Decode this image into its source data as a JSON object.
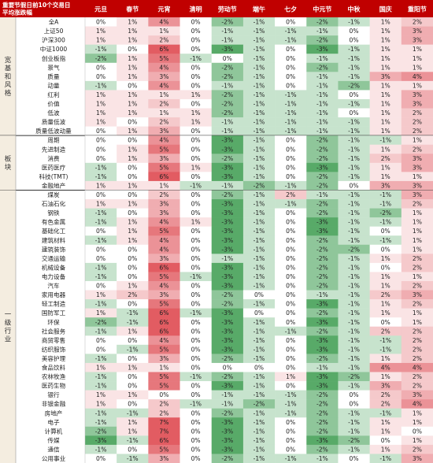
{
  "chart_data": {
    "type": "heatmap",
    "title_lines": [
      "重要节假日前10个交易日",
      "平均涨跌幅"
    ],
    "columns": [
      "元旦",
      "春节",
      "元宵",
      "清明",
      "劳动节",
      "端午",
      "七夕",
      "中元节",
      "中秋",
      "国庆",
      "重阳节"
    ],
    "groups": [
      {
        "label": "宽基和风格",
        "rows": [
          {
            "name": "全A",
            "values": [
              "0%",
              "1%",
              "4%",
              "0%",
              "-2%",
              "-1%",
              "0%",
              "-2%",
              "-1%",
              "1%",
              "2%"
            ]
          },
          {
            "name": "上证50",
            "values": [
              "1%",
              "1%",
              "1%",
              "0%",
              "-1%",
              "-1%",
              "-1%",
              "-1%",
              "0%",
              "1%",
              "3%"
            ]
          },
          {
            "name": "沪深300",
            "values": [
              "1%",
              "1%",
              "2%",
              "0%",
              "-1%",
              "-1%",
              "-1%",
              "-2%",
              "0%",
              "1%",
              "3%"
            ]
          },
          {
            "name": "中证1000",
            "values": [
              "-1%",
              "0%",
              "6%",
              "0%",
              "-3%",
              "-1%",
              "0%",
              "-3%",
              "-1%",
              "1%",
              "1%"
            ]
          },
          {
            "name": "创业板指",
            "values": [
              "-2%",
              "1%",
              "5%",
              "-1%",
              "0%",
              "-1%",
              "0%",
              "-1%",
              "-1%",
              "1%",
              "1%"
            ]
          },
          {
            "name": "景气",
            "values": [
              "0%",
              "1%",
              "4%",
              "0%",
              "-2%",
              "-1%",
              "0%",
              "-2%",
              "-1%",
              "1%",
              "1%"
            ]
          },
          {
            "name": "质量",
            "values": [
              "0%",
              "1%",
              "3%",
              "0%",
              "-2%",
              "-1%",
              "0%",
              "-1%",
              "-1%",
              "3%",
              "4%"
            ]
          },
          {
            "name": "动量",
            "values": [
              "-1%",
              "0%",
              "4%",
              "0%",
              "-1%",
              "-1%",
              "0%",
              "-1%",
              "-2%",
              "1%",
              "1%"
            ]
          },
          {
            "name": "红利",
            "values": [
              "1%",
              "1%",
              "1%",
              "1%",
              "-2%",
              "-1%",
              "-1%",
              "-1%",
              "0%",
              "1%",
              "3%"
            ]
          },
          {
            "name": "价值",
            "values": [
              "1%",
              "1%",
              "2%",
              "0%",
              "-2%",
              "-1%",
              "-1%",
              "-1%",
              "-1%",
              "1%",
              "3%"
            ]
          },
          {
            "name": "低波",
            "values": [
              "1%",
              "1%",
              "1%",
              "1%",
              "-2%",
              "-1%",
              "-1%",
              "-1%",
              "0%",
              "1%",
              "2%"
            ]
          },
          {
            "name": "质量低波",
            "values": [
              "1%",
              "0%",
              "2%",
              "1%",
              "-1%",
              "-1%",
              "-1%",
              "-1%",
              "-1%",
              "1%",
              "2%"
            ]
          },
          {
            "name": "质量低波动量",
            "values": [
              "0%",
              "1%",
              "3%",
              "0%",
              "-1%",
              "-1%",
              "-1%",
              "-1%",
              "-1%",
              "1%",
              "2%"
            ]
          }
        ]
      },
      {
        "label": "板块",
        "rows": [
          {
            "name": "周期",
            "values": [
              "0%",
              "0%",
              "4%",
              "0%",
              "-3%",
              "-1%",
              "0%",
              "-2%",
              "-1%",
              "-1%",
              "1%"
            ]
          },
          {
            "name": "先进制造",
            "values": [
              "0%",
              "1%",
              "5%",
              "0%",
              "-3%",
              "-1%",
              "0%",
              "-2%",
              "-1%",
              "1%",
              "2%"
            ]
          },
          {
            "name": "消费",
            "values": [
              "0%",
              "1%",
              "3%",
              "0%",
              "-2%",
              "-1%",
              "0%",
              "-2%",
              "-1%",
              "2%",
              "3%"
            ]
          },
          {
            "name": "医药医疗",
            "values": [
              "-1%",
              "0%",
              "5%",
              "1%",
              "-3%",
              "-1%",
              "0%",
              "-3%",
              "-1%",
              "1%",
              "3%"
            ]
          },
          {
            "name": "科技(TMT)",
            "values": [
              "-1%",
              "0%",
              "6%",
              "0%",
              "-3%",
              "-1%",
              "0%",
              "-2%",
              "-1%",
              "1%",
              "1%"
            ]
          },
          {
            "name": "金融地产",
            "values": [
              "1%",
              "1%",
              "1%",
              "-1%",
              "-1%",
              "-2%",
              "-1%",
              "-2%",
              "0%",
              "3%",
              "3%"
            ]
          }
        ]
      },
      {
        "label": "一级行业",
        "rows": [
          {
            "name": "煤炭",
            "values": [
              "0%",
              "0%",
              "2%",
              "0%",
              "-2%",
              "-1%",
              "2%",
              "-1%",
              "-1%",
              "-1%",
              "3%"
            ]
          },
          {
            "name": "石油石化",
            "values": [
              "1%",
              "1%",
              "3%",
              "0%",
              "-3%",
              "-1%",
              "-1%",
              "-2%",
              "-1%",
              "-1%",
              "2%"
            ]
          },
          {
            "name": "钢铁",
            "values": [
              "-1%",
              "0%",
              "3%",
              "0%",
              "-3%",
              "-1%",
              "0%",
              "-2%",
              "-1%",
              "-2%",
              "1%"
            ]
          },
          {
            "name": "有色金属",
            "values": [
              "-1%",
              "1%",
              "4%",
              "1%",
              "-3%",
              "-1%",
              "0%",
              "-3%",
              "-1%",
              "-1%",
              "1%"
            ]
          },
          {
            "name": "基础化工",
            "values": [
              "0%",
              "1%",
              "5%",
              "0%",
              "-3%",
              "-1%",
              "0%",
              "-3%",
              "-1%",
              "0%",
              "1%"
            ]
          },
          {
            "name": "建筑材料",
            "values": [
              "-1%",
              "1%",
              "4%",
              "0%",
              "-3%",
              "-1%",
              "0%",
              "-2%",
              "-1%",
              "-1%",
              "1%"
            ]
          },
          {
            "name": "建筑装饰",
            "values": [
              "0%",
              "0%",
              "4%",
              "0%",
              "-3%",
              "-1%",
              "0%",
              "-2%",
              "-2%",
              "0%",
              "1%"
            ]
          },
          {
            "name": "交通运输",
            "values": [
              "0%",
              "0%",
              "3%",
              "0%",
              "-1%",
              "-1%",
              "0%",
              "-2%",
              "-1%",
              "1%",
              "2%"
            ]
          },
          {
            "name": "机械设备",
            "values": [
              "-1%",
              "0%",
              "6%",
              "0%",
              "-3%",
              "-1%",
              "0%",
              "-2%",
              "-1%",
              "0%",
              "2%"
            ]
          },
          {
            "name": "电力设备",
            "values": [
              "-1%",
              "0%",
              "5%",
              "-1%",
              "-3%",
              "-1%",
              "0%",
              "-2%",
              "-1%",
              "1%",
              "1%"
            ]
          },
          {
            "name": "汽车",
            "values": [
              "0%",
              "1%",
              "4%",
              "0%",
              "-3%",
              "-1%",
              "0%",
              "-2%",
              "-1%",
              "1%",
              "2%"
            ]
          },
          {
            "name": "家用电器",
            "values": [
              "1%",
              "2%",
              "3%",
              "0%",
              "-2%",
              "0%",
              "0%",
              "-1%",
              "-1%",
              "2%",
              "3%"
            ]
          },
          {
            "name": "轻工制造",
            "values": [
              "-1%",
              "0%",
              "5%",
              "0%",
              "-2%",
              "-1%",
              "0%",
              "-3%",
              "-1%",
              "1%",
              "2%"
            ]
          },
          {
            "name": "国防军工",
            "values": [
              "1%",
              "-1%",
              "6%",
              "-1%",
              "-3%",
              "0%",
              "0%",
              "-2%",
              "-1%",
              "1%",
              "1%"
            ]
          },
          {
            "name": "环保",
            "values": [
              "-2%",
              "-1%",
              "6%",
              "0%",
              "-3%",
              "-1%",
              "0%",
              "-3%",
              "-1%",
              "0%",
              "1%"
            ]
          },
          {
            "name": "社会服务",
            "values": [
              "-1%",
              "1%",
              "6%",
              "0%",
              "-3%",
              "-1%",
              "-1%",
              "-2%",
              "-1%",
              "2%",
              "2%"
            ]
          },
          {
            "name": "商贸零售",
            "values": [
              "0%",
              "0%",
              "4%",
              "0%",
              "-3%",
              "-1%",
              "0%",
              "-3%",
              "-1%",
              "-1%",
              "2%"
            ]
          },
          {
            "name": "纺织服饰",
            "values": [
              "0%",
              "-1%",
              "5%",
              "0%",
              "-3%",
              "-1%",
              "0%",
              "-3%",
              "-1%",
              "-1%",
              "2%"
            ]
          },
          {
            "name": "美容护理",
            "values": [
              "-1%",
              "0%",
              "3%",
              "0%",
              "-2%",
              "-1%",
              "0%",
              "-2%",
              "-1%",
              "1%",
              "2%"
            ]
          },
          {
            "name": "食品饮料",
            "values": [
              "1%",
              "1%",
              "1%",
              "0%",
              "0%",
              "0%",
              "0%",
              "-1%",
              "-1%",
              "4%",
              "4%"
            ]
          },
          {
            "name": "农林牧渔",
            "values": [
              "-1%",
              "0%",
              "5%",
              "-1%",
              "-2%",
              "-1%",
              "1%",
              "-3%",
              "-2%",
              "1%",
              "2%"
            ]
          },
          {
            "name": "医药生物",
            "values": [
              "-1%",
              "0%",
              "5%",
              "0%",
              "-3%",
              "-1%",
              "0%",
              "-3%",
              "-1%",
              "3%",
              "2%"
            ]
          },
          {
            "name": "银行",
            "values": [
              "1%",
              "1%",
              "0%",
              "0%",
              "-1%",
              "-1%",
              "-1%",
              "-2%",
              "0%",
              "2%",
              "3%"
            ]
          },
          {
            "name": "非银金融",
            "values": [
              "1%",
              "0%",
              "2%",
              "-1%",
              "-1%",
              "-2%",
              "-1%",
              "-2%",
              "0%",
              "2%",
              "4%"
            ]
          },
          {
            "name": "房地产",
            "values": [
              "-1%",
              "-1%",
              "2%",
              "0%",
              "-2%",
              "-1%",
              "-1%",
              "-2%",
              "-1%",
              "-1%",
              "1%"
            ]
          },
          {
            "name": "电子",
            "values": [
              "-1%",
              "1%",
              "7%",
              "0%",
              "-3%",
              "-1%",
              "0%",
              "-2%",
              "-1%",
              "1%",
              "1%"
            ]
          },
          {
            "name": "计算机",
            "values": [
              "-2%",
              "1%",
              "7%",
              "0%",
              "-3%",
              "-1%",
              "0%",
              "-2%",
              "-1%",
              "1%",
              "0%"
            ]
          },
          {
            "name": "传媒",
            "values": [
              "-3%",
              "-1%",
              "6%",
              "0%",
              "-3%",
              "-1%",
              "0%",
              "-3%",
              "-2%",
              "0%",
              "1%"
            ]
          },
          {
            "name": "通信",
            "values": [
              "-1%",
              "0%",
              "5%",
              "0%",
              "-3%",
              "-1%",
              "0%",
              "-2%",
              "-1%",
              "1%",
              "2%"
            ]
          },
          {
            "name": "公用事业",
            "values": [
              "0%",
              "-1%",
              "3%",
              "0%",
              "-2%",
              "-1%",
              "-1%",
              "-1%",
              "0%",
              "-1%",
              "3%"
            ]
          }
        ]
      }
    ],
    "colors": {
      "header_bg": "#c00000",
      "positive_max": "#e0535a",
      "negative_max": "#3d9c50",
      "neutral": "#ffffff",
      "group_bg": "#f4ede0"
    }
  }
}
